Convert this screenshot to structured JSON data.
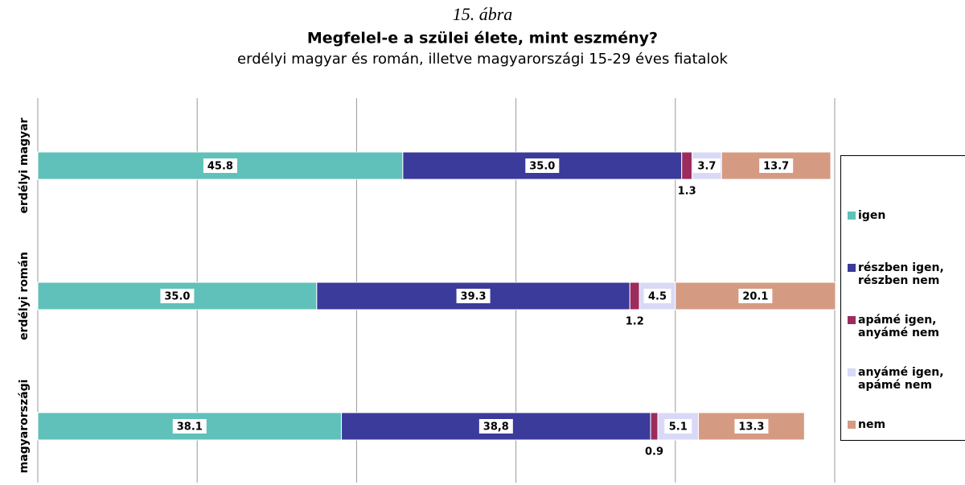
{
  "chart_data": {
    "type": "bar",
    "orientation": "horizontal",
    "stacked": true,
    "supertitle": "15. ábra",
    "title": "Megfelel-e a szülei élete, mint eszmény?",
    "subtitle": "erdélyi magyar és román, illetve magyarországi 15-29 éves fiatalok",
    "categories": [
      "erdélyi magyar",
      "erdélyi román",
      "magyarországi"
    ],
    "series": [
      {
        "name": "igen",
        "color": "#5fc1b9",
        "values": [
          45.8,
          35.0,
          38.1
        ],
        "value_labels": [
          "45.8",
          "35.0",
          "38.1"
        ]
      },
      {
        "name": "részben igen, részben nem",
        "color": "#3b3b9c",
        "values": [
          35.0,
          39.3,
          38.8
        ],
        "value_labels": [
          "35.0",
          "39.3",
          "38,8"
        ]
      },
      {
        "name": "apámé igen, anyámé nem",
        "color": "#9c2c5c",
        "values": [
          1.3,
          1.2,
          0.9
        ],
        "value_labels": [
          "1.3",
          "1.2",
          "0.9"
        ]
      },
      {
        "name": "anyámé igen, apámé nem",
        "color": "#d9d9f7",
        "values": [
          3.7,
          4.5,
          5.1
        ],
        "value_labels": [
          "3.7",
          "4.5",
          "5.1"
        ]
      },
      {
        "name": "nem",
        "color": "#d59b82",
        "values": [
          13.7,
          20.1,
          13.3
        ],
        "value_labels": [
          "13.7",
          "20.1",
          "13.3"
        ]
      }
    ],
    "xlim": [
      0,
      100
    ],
    "xticks": [
      0,
      20,
      40,
      60,
      80,
      100
    ],
    "grid": true,
    "legend": "right"
  }
}
